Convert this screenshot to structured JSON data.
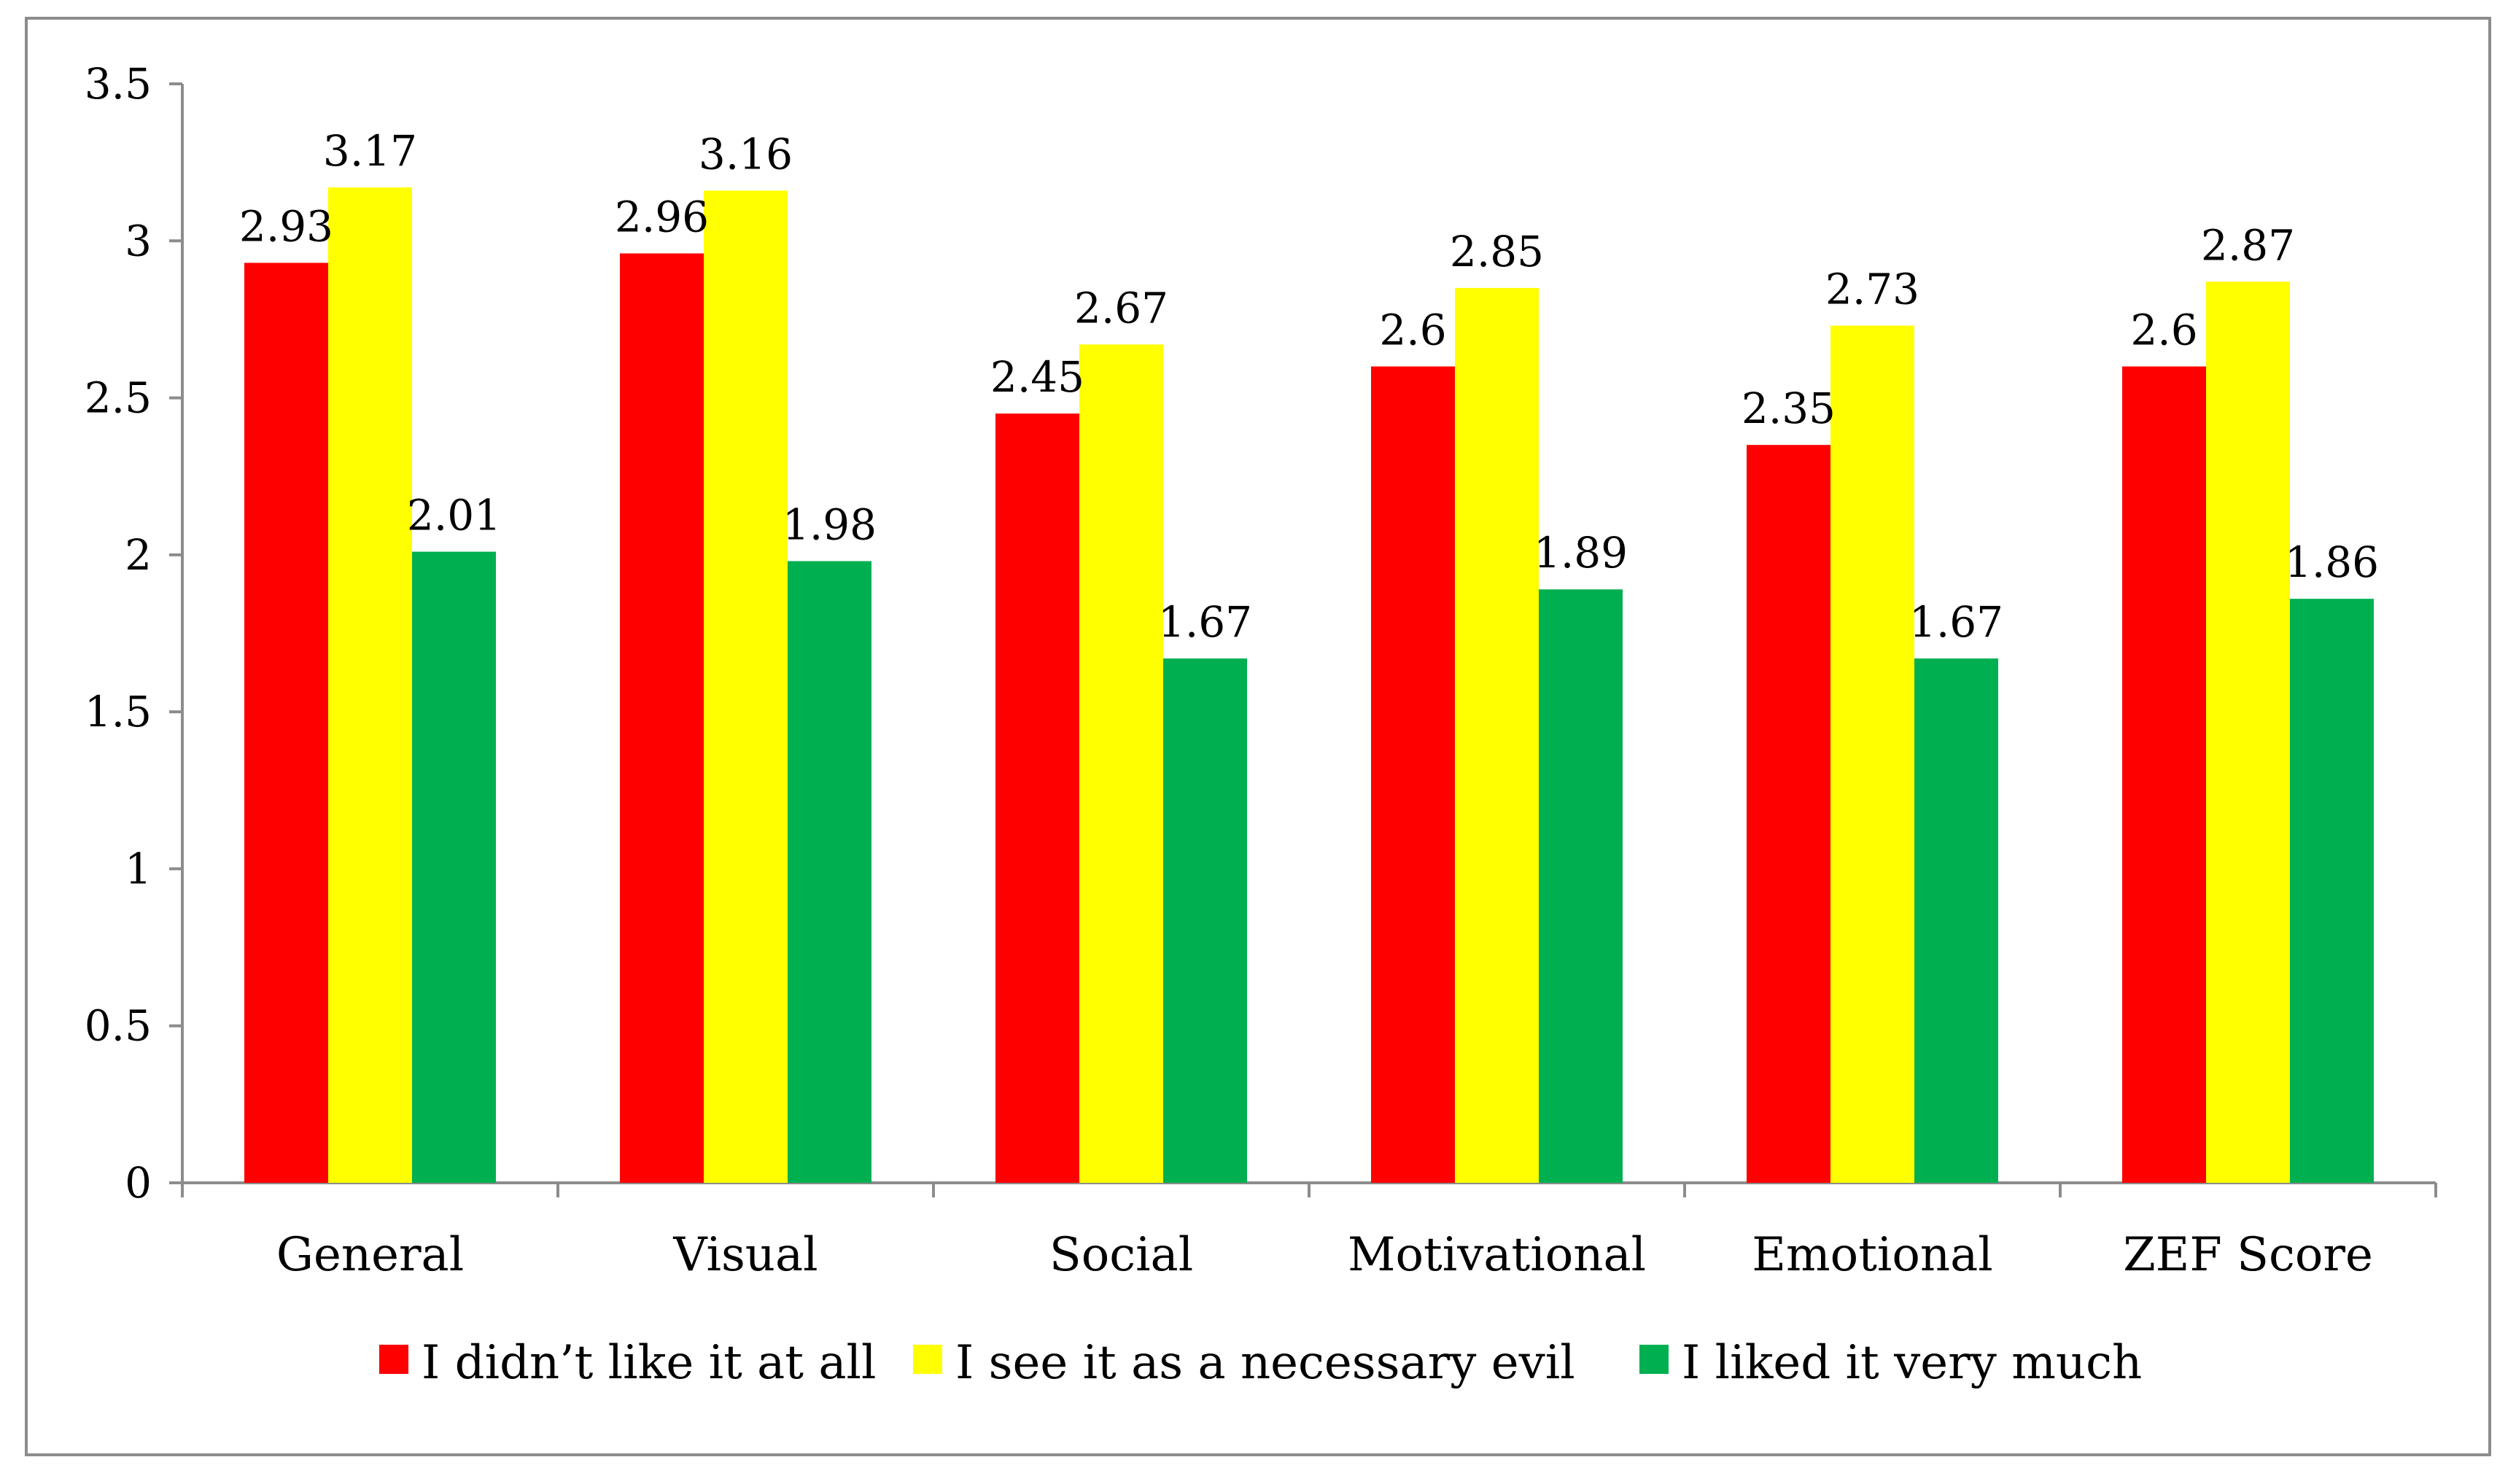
{
  "chart_data": {
    "type": "bar",
    "title": "",
    "xlabel": "",
    "ylabel": "",
    "ylim": [
      0,
      3.5
    ],
    "yticks": [
      "0",
      "0.5",
      "1",
      "1.5",
      "2",
      "2.5",
      "3",
      "3.5"
    ],
    "categories": [
      "General",
      "Visual",
      "Social",
      "Motivational",
      "Emotional",
      "ZEF Score"
    ],
    "series": [
      {
        "name": "I didn’t like it at all",
        "color": "#ff0000",
        "values": [
          2.93,
          2.96,
          2.45,
          2.6,
          2.35,
          2.6
        ],
        "labels": [
          "2.93",
          "2.96",
          "2.45",
          "2.6",
          "2.35",
          "2.6"
        ]
      },
      {
        "name": "I see it as a necessary evil",
        "color": "#ffff00",
        "values": [
          3.17,
          3.16,
          2.67,
          2.85,
          2.73,
          2.87
        ],
        "labels": [
          "3.17",
          "3.16",
          "2.67",
          "2.85",
          "2.73",
          "2.87"
        ]
      },
      {
        "name": "I liked it very much",
        "color": "#00b050",
        "values": [
          2.01,
          1.98,
          1.67,
          1.89,
          1.67,
          1.86
        ],
        "labels": [
          "2.01",
          "1.98",
          "1.67",
          "1.89",
          "1.67",
          "1.86"
        ]
      }
    ],
    "grid": false,
    "legend_position": "bottom"
  }
}
